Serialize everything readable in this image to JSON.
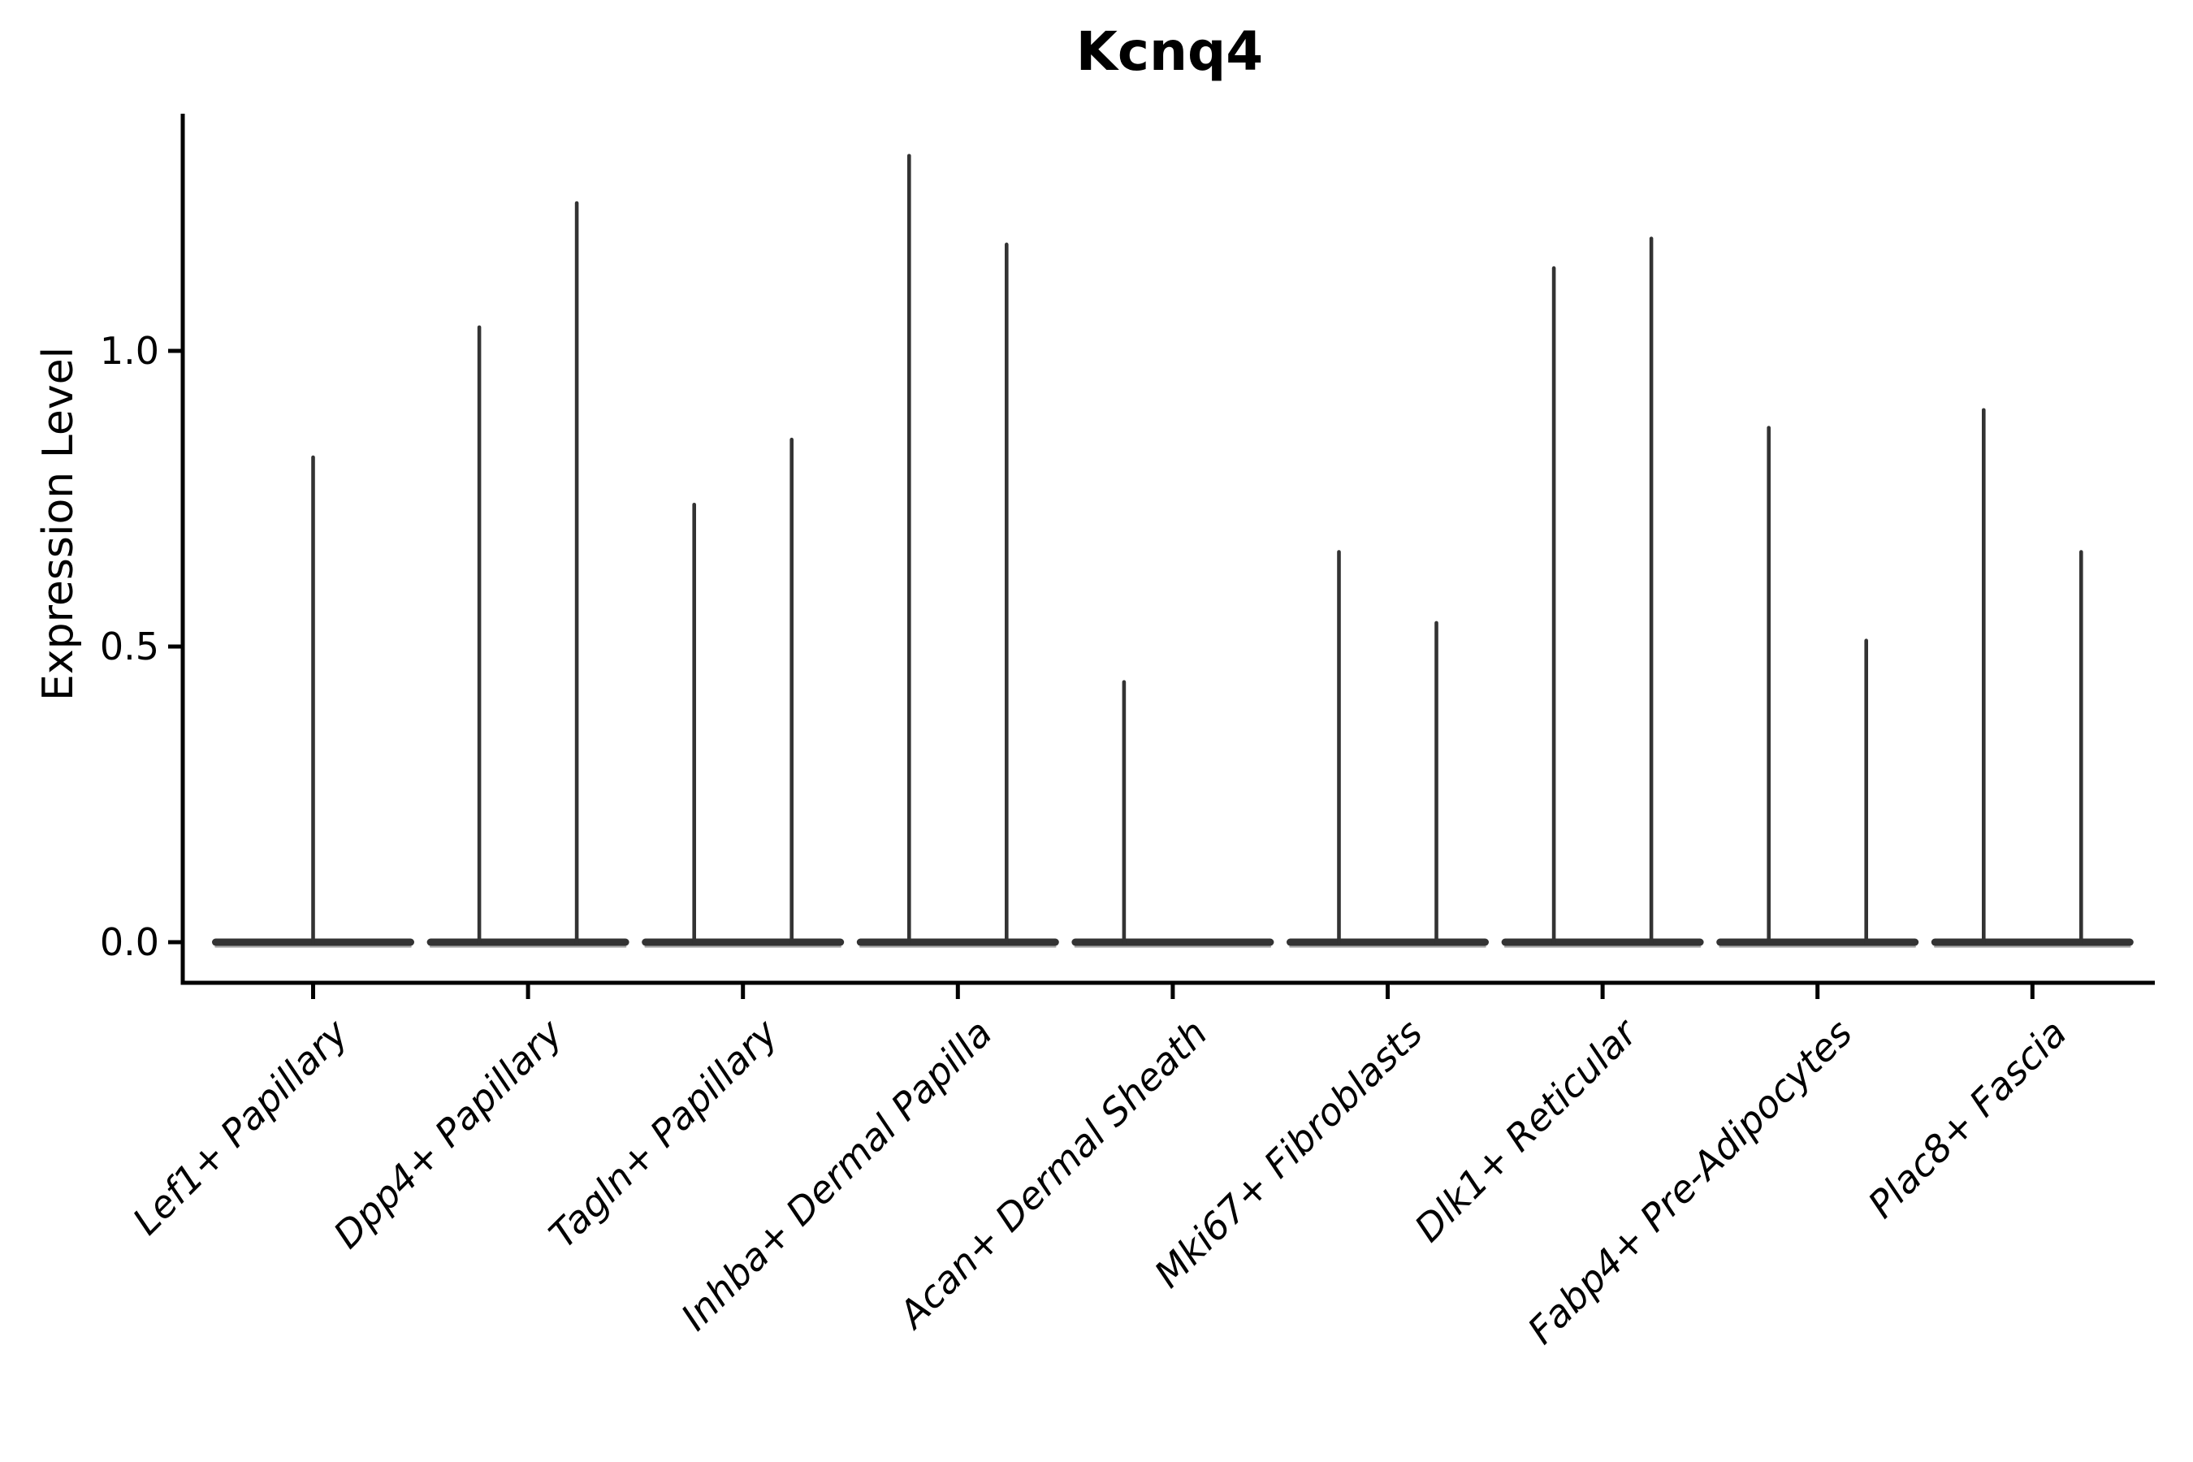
{
  "figure": {
    "background": "#ffffff"
  },
  "chart_data": {
    "type": "violin",
    "title": "Kcnq4",
    "ylabel": "Expression Level",
    "xlabel": "",
    "grid": false,
    "legend": null,
    "axis_color": "#000000",
    "violin_color": "#333333",
    "violin_base_halo_color": "#aaaaaa",
    "ylim": [
      0,
      1.4
    ],
    "ytick_labels": [
      "0.0",
      "0.5",
      "1.0"
    ],
    "ytick_values": [
      0.0,
      0.5,
      1.0
    ],
    "categories": [
      "Lef1+ Papillary",
      "Dpp4+ Papillary",
      "Tagln+ Papillary",
      "Inhba+ Dermal Papilla",
      "Acan+ Dermal Sheath",
      "Mki67+ Fibroblasts",
      "Dlk1+ Reticular",
      "Fabp4+ Pre-Adipocytes",
      "Plac8+ Fascia"
    ],
    "violins": [
      {
        "category": "Lef1+ Papillary",
        "spikes": [
          {
            "position": "center",
            "max_value": 0.82
          }
        ]
      },
      {
        "category": "Dpp4+ Papillary",
        "spikes": [
          {
            "position": "left",
            "max_value": 1.04
          },
          {
            "position": "right",
            "max_value": 1.25
          }
        ]
      },
      {
        "category": "Tagln+ Papillary",
        "spikes": [
          {
            "position": "left",
            "max_value": 0.74
          },
          {
            "position": "right",
            "max_value": 0.85
          }
        ]
      },
      {
        "category": "Inhba+ Dermal Papilla",
        "spikes": [
          {
            "position": "left",
            "max_value": 1.33
          },
          {
            "position": "right",
            "max_value": 1.18
          }
        ]
      },
      {
        "category": "Acan+ Dermal Sheath",
        "spikes": [
          {
            "position": "left",
            "max_value": 0.44
          }
        ]
      },
      {
        "category": "Mki67+ Fibroblasts",
        "spikes": [
          {
            "position": "left",
            "max_value": 0.66
          },
          {
            "position": "right",
            "max_value": 0.54
          }
        ]
      },
      {
        "category": "Dlk1+ Reticular",
        "spikes": [
          {
            "position": "left",
            "max_value": 1.14
          },
          {
            "position": "right",
            "max_value": 1.19
          }
        ]
      },
      {
        "category": "Fabp4+ Pre-Adipocytes",
        "spikes": [
          {
            "position": "left",
            "max_value": 0.87
          },
          {
            "position": "right",
            "max_value": 0.51
          }
        ]
      },
      {
        "category": "Plac8+ Fascia",
        "spikes": [
          {
            "position": "left",
            "max_value": 0.9
          },
          {
            "position": "right",
            "max_value": 0.66
          }
        ]
      }
    ]
  }
}
